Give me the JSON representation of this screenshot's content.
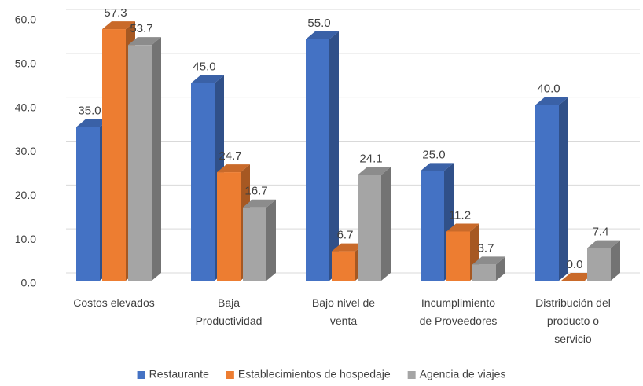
{
  "chart_data": {
    "type": "bar3d",
    "categories": [
      "Costos elevados",
      "Baja\nProductividad",
      "Bajo nivel de\nventa",
      "Incumplimiento\nde Proveedores",
      "Distribución del\nproducto o\nservicio"
    ],
    "series": [
      {
        "name": "Restaurante",
        "color": "#4472c4",
        "values": [
          35.0,
          45.0,
          55.0,
          25.0,
          40.0
        ],
        "value_labels": [
          "35.0",
          "45.0",
          "55.0",
          "25.0",
          "40.0"
        ]
      },
      {
        "name": "Establecimientos de hospedaje",
        "color": "#ed7d31",
        "values": [
          57.3,
          24.7,
          6.7,
          11.2,
          0.0
        ],
        "value_labels": [
          "57.3",
          "24.7",
          "6.7",
          "11.2",
          "0.0"
        ]
      },
      {
        "name": "Agencia de viajes",
        "color": "#a5a5a5",
        "values": [
          53.7,
          16.7,
          24.1,
          3.7,
          7.4
        ],
        "value_labels": [
          "53.7",
          "16.7",
          "24.1",
          "3.7",
          "7.4"
        ]
      }
    ],
    "ylim": [
      0,
      60
    ],
    "yticks": [
      {
        "value": 0,
        "label": "0.0"
      },
      {
        "value": 10,
        "label": "10.0"
      },
      {
        "value": 20,
        "label": "20.0"
      },
      {
        "value": 30,
        "label": "30.0"
      },
      {
        "value": 40,
        "label": "40.0"
      },
      {
        "value": 50,
        "label": "50.0"
      },
      {
        "value": 60,
        "label": "60.0"
      }
    ],
    "grid": true,
    "legend": "bottom"
  }
}
